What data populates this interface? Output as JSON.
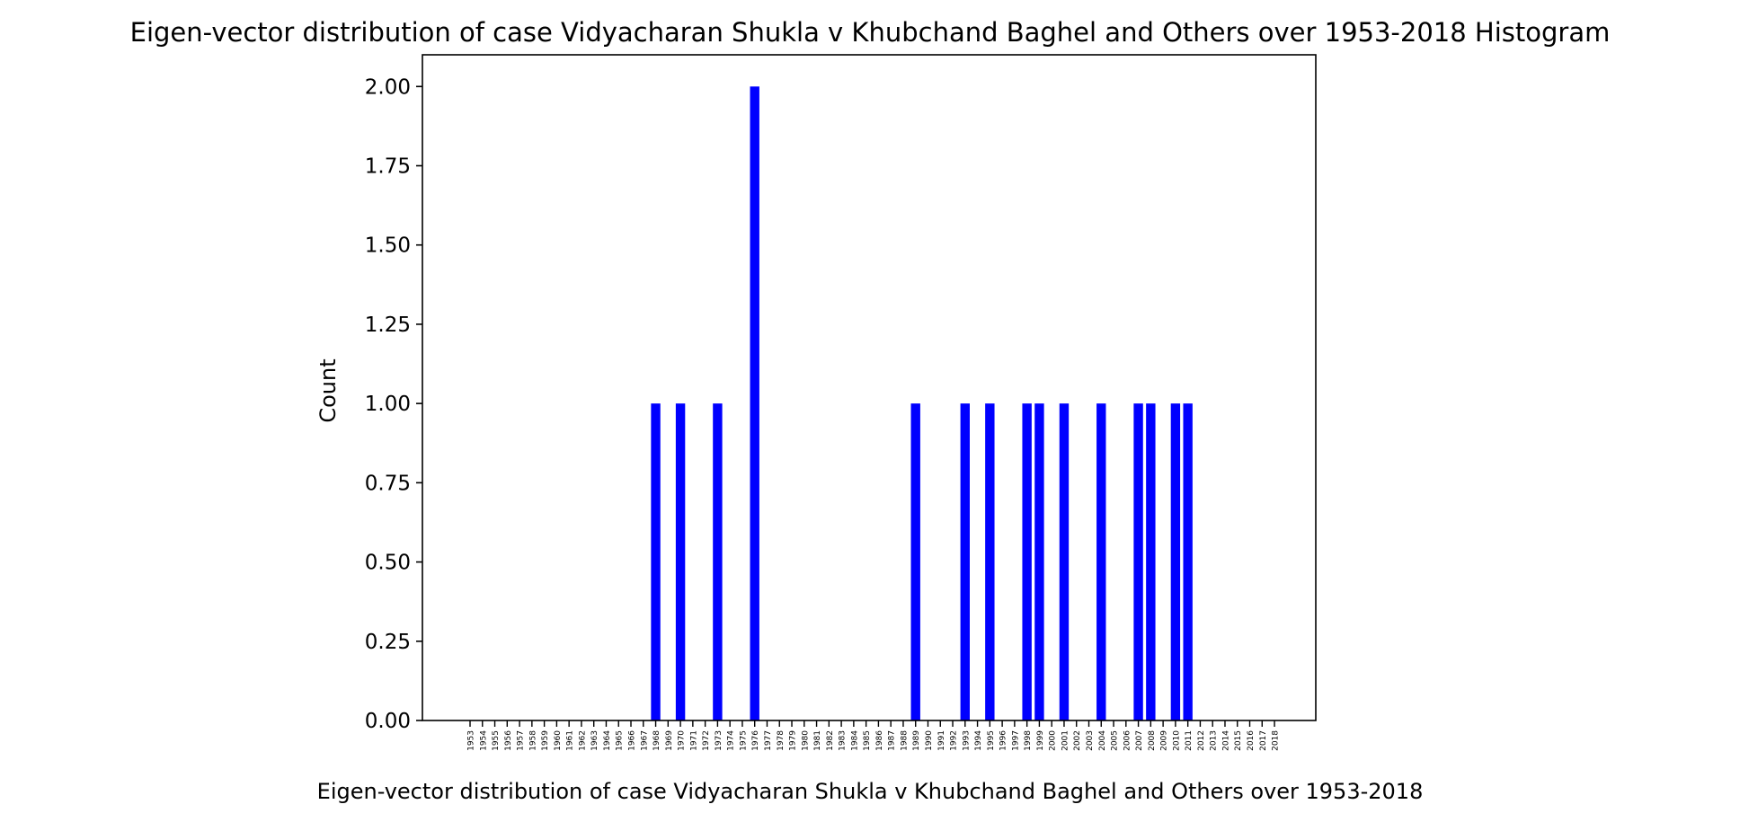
{
  "chart_data": {
    "type": "bar",
    "title": "Eigen-vector distribution of case Vidyacharan Shukla v Khubchand Baghel and Others over 1953-2018 Histogram",
    "xlabel": "Eigen-vector distribution of case Vidyacharan Shukla v Khubchand Baghel and Others over 1953-2018",
    "ylabel": "Count",
    "ylim": [
      0,
      2.1
    ],
    "yticks": [
      "0.00",
      "0.25",
      "0.50",
      "0.75",
      "1.00",
      "1.25",
      "1.50",
      "1.75",
      "2.00"
    ],
    "bar_color": "#0000ff",
    "categories": [
      "1953",
      "1954",
      "1955",
      "1956",
      "1957",
      "1958",
      "1959",
      "1960",
      "1961",
      "1962",
      "1963",
      "1964",
      "1965",
      "1966",
      "1967",
      "1968",
      "1969",
      "1970",
      "1971",
      "1972",
      "1973",
      "1974",
      "1975",
      "1976",
      "1977",
      "1978",
      "1979",
      "1980",
      "1981",
      "1982",
      "1983",
      "1984",
      "1985",
      "1986",
      "1987",
      "1988",
      "1989",
      "1990",
      "1991",
      "1992",
      "1993",
      "1994",
      "1995",
      "1996",
      "1997",
      "1998",
      "1999",
      "2000",
      "2001",
      "2002",
      "2003",
      "2004",
      "2005",
      "2006",
      "2007",
      "2008",
      "2009",
      "2010",
      "2011",
      "2012",
      "2013",
      "2014",
      "2015",
      "2016",
      "2017",
      "2018"
    ],
    "values": [
      0,
      0,
      0,
      0,
      0,
      0,
      0,
      0,
      0,
      0,
      0,
      0,
      0,
      0,
      0,
      1,
      0,
      1,
      0,
      0,
      1,
      0,
      0,
      2,
      0,
      0,
      0,
      0,
      0,
      0,
      0,
      0,
      0,
      0,
      0,
      0,
      1,
      0,
      0,
      0,
      1,
      0,
      1,
      0,
      0,
      1,
      1,
      0,
      1,
      0,
      0,
      1,
      0,
      0,
      1,
      1,
      0,
      1,
      1,
      0,
      0,
      0,
      0,
      0,
      0,
      0
    ]
  }
}
